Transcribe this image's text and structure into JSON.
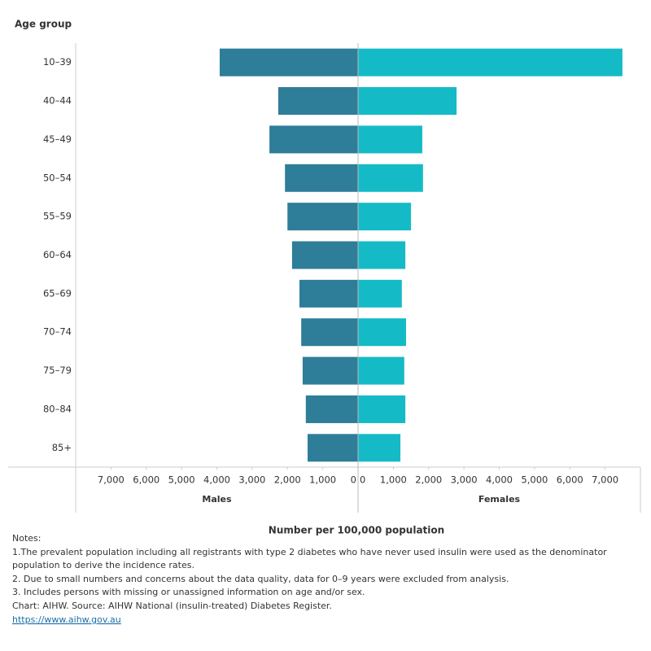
{
  "chart_data": {
    "type": "pyramid",
    "y_axis_title": "Age group",
    "x_axis_title": "Number per 100,000 population",
    "categories": [
      "10–39",
      "40–44",
      "45–49",
      "50–54",
      "55–59",
      "60–64",
      "65–69",
      "70–74",
      "75–79",
      "80–84",
      "85+"
    ],
    "series": [
      {
        "name": "Males",
        "color": "#2e7d99",
        "side": "left",
        "values": [
          3920,
          2260,
          2510,
          2070,
          2000,
          1870,
          1660,
          1610,
          1570,
          1480,
          1430
        ]
      },
      {
        "name": "Females",
        "color": "#14bbc6",
        "side": "right",
        "values": [
          7490,
          2790,
          1820,
          1840,
          1500,
          1340,
          1240,
          1360,
          1310,
          1340,
          1200
        ]
      }
    ],
    "xlim": [
      0,
      8000
    ],
    "xticks": [
      0,
      {
        "value": 1000,
        "label": "1,000"
      },
      {
        "value": 2000,
        "label": "2,000"
      },
      {
        "value": 3000,
        "label": "3,000"
      },
      {
        "value": 4000,
        "label": "4,000"
      },
      {
        "value": 5000,
        "label": "5,000"
      },
      {
        "value": 6000,
        "label": "6,000"
      },
      {
        "value": 7000,
        "label": "7,000"
      }
    ]
  },
  "notes": [
    "Notes:",
    "1.The prevalent population including all registrants with type 2 diabetes who have never used insulin were used as the denominator",
    "population to derive the incidence rates.",
    "2. Due to small numbers and concerns about the data quality, data for 0–9 years were excluded from analysis.",
    "3. Includes persons with missing or unassigned information on age and/or sex.",
    "Chart: AIHW.  Source: AIHW National (insulin-treated) Diabetes Register."
  ],
  "link": "https://www.aihw.gov.au"
}
